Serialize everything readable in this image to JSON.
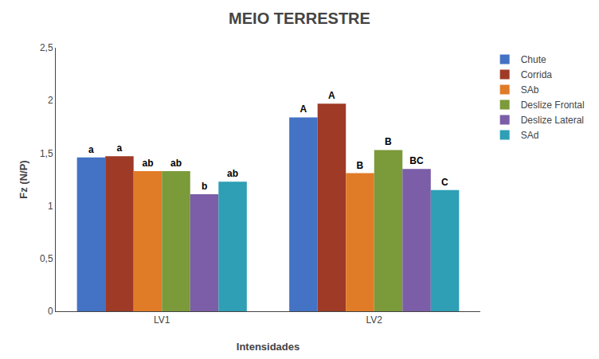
{
  "chart_data": {
    "type": "bar",
    "title": "MEIO TERRESTRE",
    "xlabel": "Intensidades",
    "ylabel": "Fz (N/P)",
    "categories": [
      "LV1",
      "LV2"
    ],
    "series": [
      {
        "name": "Chute",
        "color": "#4472C4",
        "values": [
          1.46,
          1.84
        ],
        "value_labels": [
          "a",
          "A"
        ]
      },
      {
        "name": "Corrida",
        "color": "#9E3A26",
        "values": [
          1.47,
          1.97
        ],
        "value_labels": [
          "a",
          "A"
        ]
      },
      {
        "name": "SAb",
        "color": "#E07B28",
        "values": [
          1.33,
          1.31
        ],
        "value_labels": [
          "ab",
          "B"
        ]
      },
      {
        "name": "Deslize Frontal",
        "color": "#7B9A3A",
        "values": [
          1.33,
          1.53
        ],
        "value_labels": [
          "ab",
          "B"
        ]
      },
      {
        "name": "Deslize Lateral",
        "color": "#7B5EA7",
        "values": [
          1.11,
          1.35
        ],
        "value_labels": [
          "b",
          "BC"
        ]
      },
      {
        "name": "SAd",
        "color": "#2E9FB5",
        "values": [
          1.23,
          1.15
        ],
        "value_labels": [
          "ab",
          "C"
        ]
      }
    ],
    "ylim": [
      0,
      2.5
    ],
    "yticks": [
      0,
      {
        "value": 0.5,
        "label": "0,5"
      },
      1,
      {
        "value": 1.5,
        "label": "1,5"
      },
      2,
      {
        "value": 2.5,
        "label": "2,5"
      }
    ],
    "grid": false,
    "legend": "right"
  }
}
